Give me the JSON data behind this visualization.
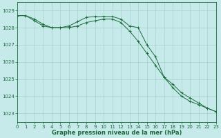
{
  "title": "Graphe pression niveau de la mer (hPa)",
  "background_color": "#c6e9e9",
  "grid_color": "#a8d0d0",
  "line_color": "#1a6b3a",
  "xlim": [
    0,
    23
  ],
  "ylim": [
    1022.5,
    1029.5
  ],
  "yticks": [
    1023,
    1024,
    1025,
    1026,
    1027,
    1028,
    1029
  ],
  "xticks": [
    0,
    1,
    2,
    3,
    4,
    5,
    6,
    7,
    8,
    9,
    10,
    11,
    12,
    13,
    14,
    15,
    16,
    17,
    18,
    19,
    20,
    21,
    22,
    23
  ],
  "series1_x": [
    0,
    1,
    2,
    3,
    4,
    5,
    6,
    7,
    8,
    9,
    10,
    11,
    12,
    13,
    14,
    15,
    16,
    17,
    18,
    19,
    20,
    21,
    22,
    23
  ],
  "series1_y": [
    1028.7,
    1028.7,
    1028.5,
    1028.2,
    1028.0,
    1028.0,
    1028.1,
    1028.35,
    1028.6,
    1028.65,
    1028.65,
    1028.65,
    1028.5,
    1028.1,
    1028.0,
    1027.0,
    1026.3,
    1025.1,
    1024.7,
    1024.2,
    1023.9,
    1023.6,
    1023.3,
    1023.1
  ],
  "series2_x": [
    0,
    1,
    2,
    3,
    4,
    5,
    6,
    7,
    8,
    9,
    10,
    11,
    12,
    13,
    14,
    15,
    16,
    17,
    18,
    19,
    20,
    21,
    22,
    23
  ],
  "series2_y": [
    1028.7,
    1028.7,
    1028.4,
    1028.1,
    1028.0,
    1028.0,
    1028.0,
    1028.1,
    1028.3,
    1028.4,
    1028.5,
    1028.5,
    1028.3,
    1027.8,
    1027.2,
    1026.5,
    1025.8,
    1025.1,
    1024.5,
    1024.0,
    1023.7,
    1023.5,
    1023.3,
    1023.1
  ],
  "tick_labelsize": 5,
  "xlabel_fontsize": 6,
  "fig_width": 3.2,
  "fig_height": 2.0,
  "dpi": 100
}
